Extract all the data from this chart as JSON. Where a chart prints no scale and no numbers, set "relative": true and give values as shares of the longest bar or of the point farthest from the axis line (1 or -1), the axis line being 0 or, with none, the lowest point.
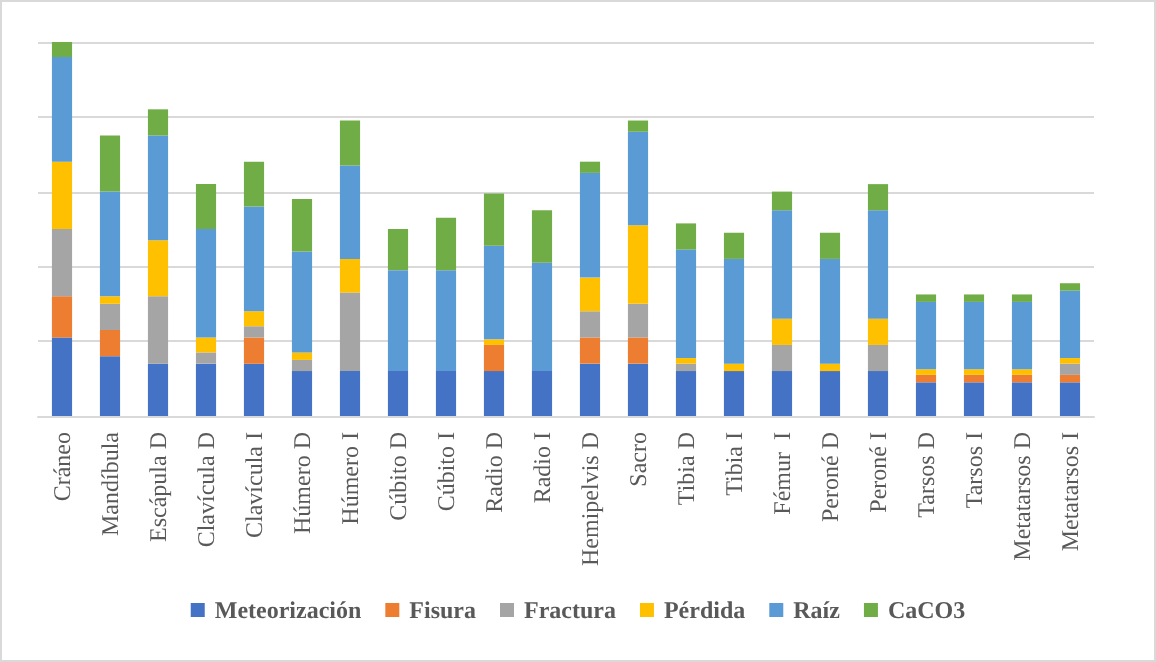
{
  "chart_data": {
    "type": "bar",
    "stacked": true,
    "relative": true,
    "grid": "y",
    "legend": "bottom",
    "categories": [
      "Cráneo",
      "Mandíbula",
      "Escápula D",
      "Clavícula D",
      "Clavícula I",
      "Húmero D",
      "Húmero I",
      "Cúbito D",
      "Cúbito I",
      "Radio D",
      "Radio I",
      "Hemipelvis D",
      "Sacro",
      "Tibia D",
      "Tibia I",
      "Fémur  I",
      "Peroné D",
      "Peroné I",
      "Tarsos D",
      "Tarsos I",
      "Metatarsos D",
      "Metatarsos I"
    ],
    "series": [
      {
        "name": "Meteorización",
        "color": "#4472c4",
        "values": [
          0.21,
          0.16,
          0.14,
          0.14,
          0.14,
          0.12,
          0.12,
          0.12,
          0.12,
          0.12,
          0.12,
          0.14,
          0.14,
          0.12,
          0.12,
          0.12,
          0.12,
          0.12,
          0.09,
          0.09,
          0.09,
          0.09
        ]
      },
      {
        "name": "Fisura",
        "color": "#ed7d31",
        "values": [
          0.11,
          0.07,
          0,
          0,
          0.07,
          0,
          0,
          0,
          0,
          0.07,
          0,
          0.07,
          0.07,
          0,
          0,
          0,
          0,
          0,
          0.02,
          0.02,
          0.02,
          0.02
        ]
      },
      {
        "name": "Fractura",
        "color": "#a5a5a5",
        "values": [
          0.18,
          0.07,
          0.18,
          0.03,
          0.03,
          0.03,
          0.21,
          0,
          0,
          0,
          0,
          0.07,
          0.09,
          0.02,
          0,
          0.07,
          0,
          0.07,
          0,
          0,
          0,
          0.03
        ]
      },
      {
        "name": "Pérdida",
        "color": "#ffc000",
        "values": [
          0.18,
          0.02,
          0.15,
          0.04,
          0.04,
          0.02,
          0.09,
          0,
          0,
          0.015,
          0,
          0.09,
          0.21,
          0.015,
          0.02,
          0.07,
          0.02,
          0.07,
          0.015,
          0.015,
          0.015,
          0.015
        ]
      },
      {
        "name": "Raíz",
        "color": "#5b9bd5",
        "values": [
          0.28,
          0.28,
          0.28,
          0.29,
          0.28,
          0.27,
          0.25,
          0.27,
          0.27,
          0.25,
          0.29,
          0.28,
          0.25,
          0.29,
          0.28,
          0.29,
          0.28,
          0.29,
          0.18,
          0.18,
          0.18,
          0.18
        ]
      },
      {
        "name": "CaCO3",
        "color": "#70ad47",
        "values": [
          0.04,
          0.15,
          0.07,
          0.12,
          0.12,
          0.14,
          0.12,
          0.11,
          0.14,
          0.14,
          0.14,
          0.03,
          0.03,
          0.07,
          0.07,
          0.05,
          0.07,
          0.07,
          0.02,
          0.02,
          0.02,
          0.02
        ]
      }
    ]
  }
}
